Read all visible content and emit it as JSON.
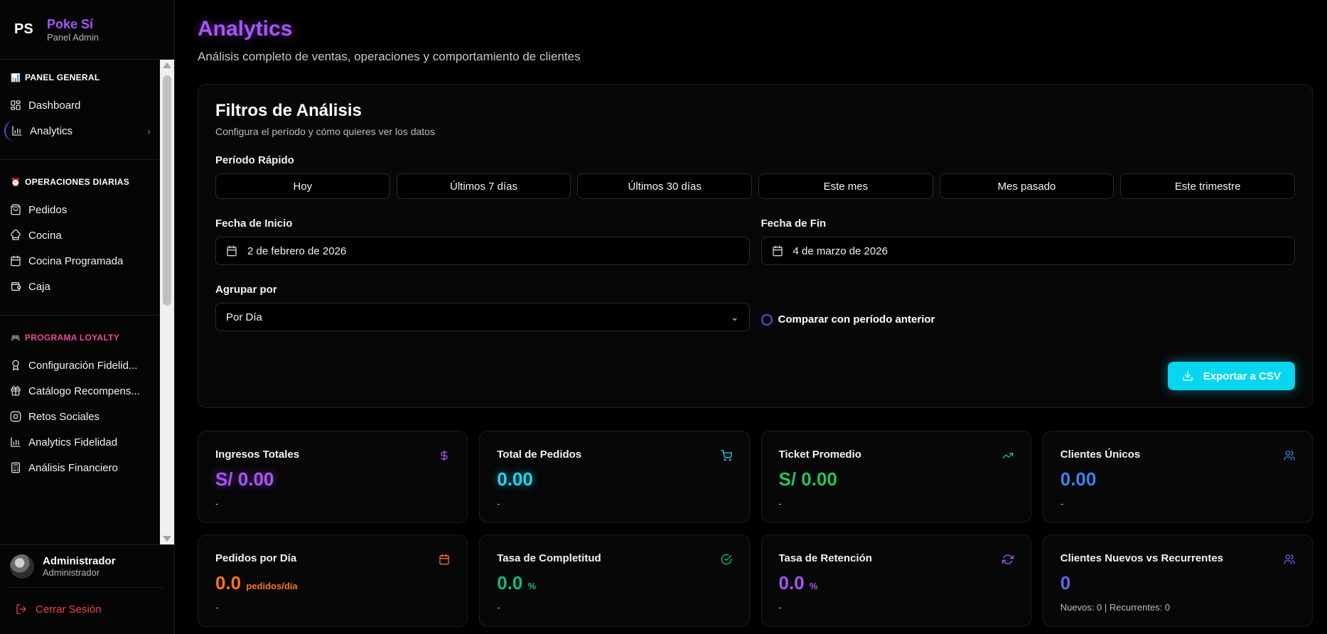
{
  "brand": {
    "logo": "PS",
    "name": "Poke Sí",
    "sub": "Panel Admin"
  },
  "sidebar": {
    "sections": [
      {
        "title": "PANEL GENERAL",
        "emoji": "📊",
        "color": "#ffffff",
        "items": [
          {
            "label": "Dashboard",
            "icon": "dashboard-icon"
          },
          {
            "label": "Analytics",
            "icon": "bar-chart-icon",
            "active": true
          }
        ]
      },
      {
        "title": "OPERACIONES DIARIAS",
        "emoji": "⏰",
        "color": "#ffffff",
        "items": [
          {
            "label": "Pedidos",
            "icon": "bag-icon"
          },
          {
            "label": "Cocina",
            "icon": "chef-hat-icon"
          },
          {
            "label": "Cocina Programada",
            "icon": "calendar-icon"
          },
          {
            "label": "Caja",
            "icon": "wallet-icon"
          }
        ]
      },
      {
        "title": "PROGRAMA LOYALTY",
        "emoji": "🎮",
        "color": "#ec4899",
        "items": [
          {
            "label": "Configuración Fidelid...",
            "icon": "award-icon"
          },
          {
            "label": "Catálogo Recompens...",
            "icon": "gift-icon"
          },
          {
            "label": "Retos Sociales",
            "icon": "instagram-icon"
          },
          {
            "label": "Analytics Fidelidad",
            "icon": "bar-chart-icon"
          },
          {
            "label": "Análisis Financiero",
            "icon": "calculator-icon"
          }
        ]
      }
    ]
  },
  "user": {
    "name": "Administrador",
    "role": "Administrador",
    "logout": "Cerrar Sesión"
  },
  "header": {
    "title": "Analytics",
    "subtitle": "Análisis completo de ventas, operaciones y comportamiento de clientes"
  },
  "filters": {
    "title": "Filtros de Análisis",
    "subtitle": "Configura el período y cómo quieres ver los datos",
    "quick_label": "Período Rápido",
    "quick": [
      "Hoy",
      "Últimos 7 días",
      "Últimos 30 días",
      "Este mes",
      "Mes pasado",
      "Este trimestre"
    ],
    "start_label": "Fecha de Inicio",
    "start_value": "2 de febrero de 2026",
    "end_label": "Fecha de Fin",
    "end_value": "4 de marzo de 2026",
    "group_label": "Agrupar por",
    "group_value": "Por Día",
    "compare_label": "Comparar con período anterior",
    "export_label": "Exportar a CSV"
  },
  "stats": [
    {
      "title": "Ingresos Totales",
      "value": "S/ 0.00",
      "unit": "",
      "foot": "-",
      "color": "#a855f7",
      "glow": true,
      "icon": "dollar-icon"
    },
    {
      "title": "Total de Pedidos",
      "value": "0.00",
      "unit": "",
      "foot": "-",
      "color": "#22d3ee",
      "glow": true,
      "icon": "cart-icon"
    },
    {
      "title": "Ticket Promedio",
      "value": "S/ 0.00",
      "unit": "",
      "foot": "-",
      "color": "#22c55e",
      "glow": false,
      "icon": "trending-up-icon"
    },
    {
      "title": "Clientes Únicos",
      "value": "0.00",
      "unit": "",
      "foot": "-",
      "color": "#3b82f6",
      "glow": false,
      "icon": "users-icon"
    },
    {
      "title": "Pedidos por Día",
      "value": "0.0",
      "unit": "pedidos/día",
      "foot": "-",
      "color": "#f97316",
      "glow": false,
      "icon": "calendar-icon"
    },
    {
      "title": "Tasa de Completitud",
      "value": "0.0",
      "unit": "%",
      "foot": "-",
      "color": "#10b981",
      "glow": false,
      "icon": "check-circle-icon"
    },
    {
      "title": "Tasa de Retención",
      "value": "0.0",
      "unit": "%",
      "foot": "-",
      "color": "#a855f7",
      "glow": false,
      "icon": "refresh-icon"
    },
    {
      "title": "Clientes Nuevos vs Recurrentes",
      "value": "0",
      "unit": "",
      "foot": "Nuevos: 0 | Recurrentes: 0",
      "color": "#6366f1",
      "glow": false,
      "icon": "users-icon"
    }
  ]
}
